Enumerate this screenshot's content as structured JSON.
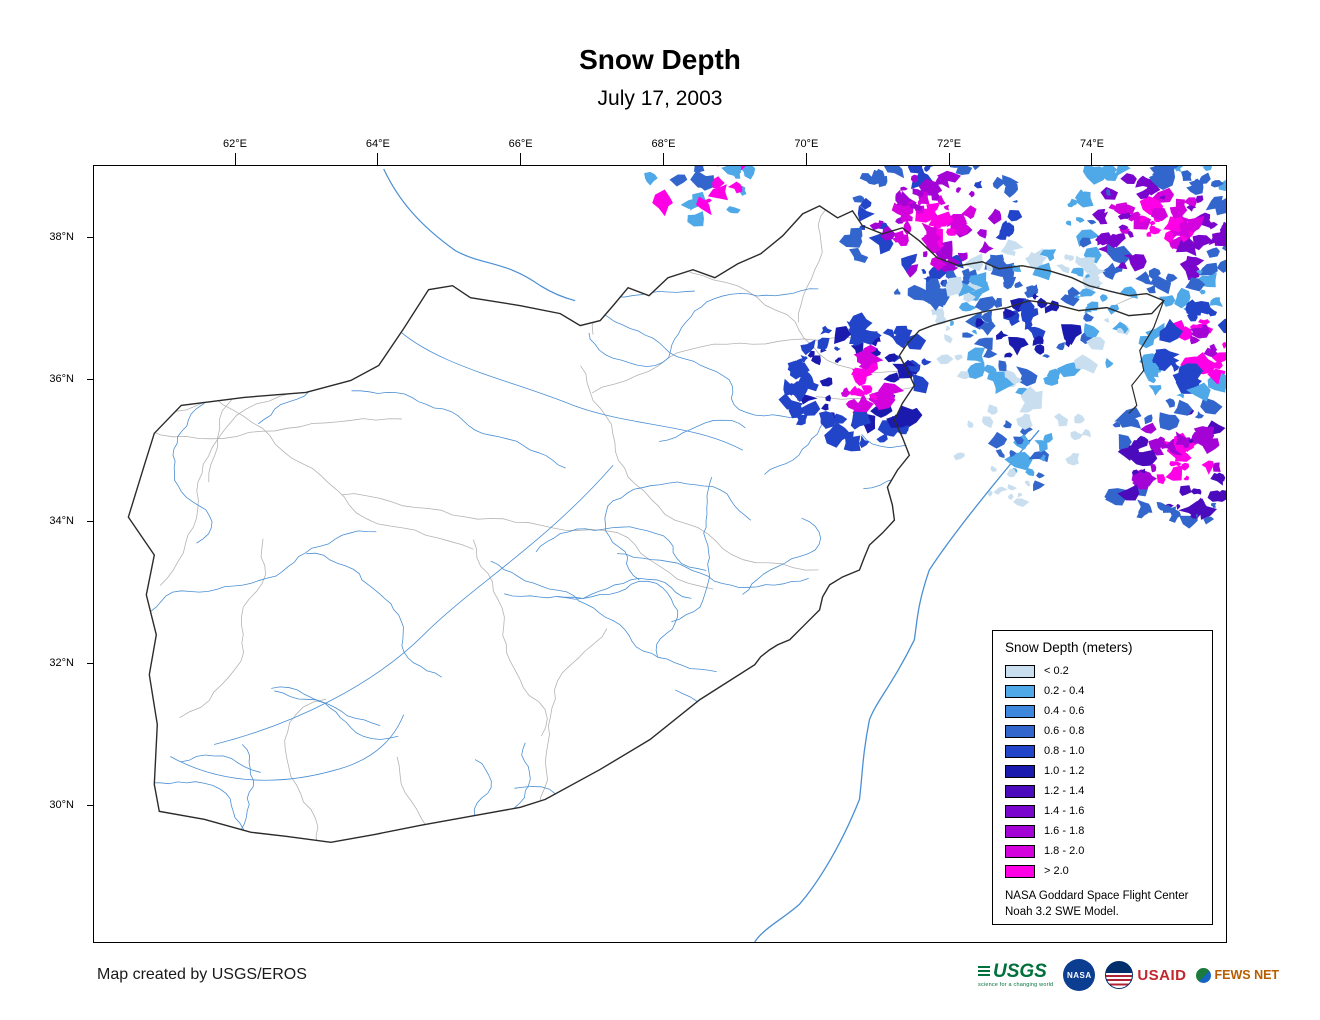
{
  "title": "Snow Depth",
  "date": "July 17, 2003",
  "axes": {
    "top_ticks": [
      "62°E",
      "64°E",
      "66°E",
      "68°E",
      "70°E",
      "72°E",
      "74°E"
    ],
    "left_ticks": [
      "38°N",
      "36°N",
      "34°N",
      "32°N",
      "30°N"
    ]
  },
  "legend": {
    "title": "Snow Depth (meters)",
    "items": [
      {
        "label": "< 0.2",
        "color": "#c9dff0"
      },
      {
        "label": "0.2 - 0.4",
        "color": "#4fa8e8"
      },
      {
        "label": "0.4 - 0.6",
        "color": "#3d87dd"
      },
      {
        "label": "0.6 - 0.8",
        "color": "#3366cc"
      },
      {
        "label": "0.8 - 1.0",
        "color": "#2244c8"
      },
      {
        "label": "1.0 - 1.2",
        "color": "#1a1aae"
      },
      {
        "label": "1.2 - 1.4",
        "color": "#4b0bbd"
      },
      {
        "label": "1.4 - 1.6",
        "color": "#7a05cc"
      },
      {
        "label": "1.6 - 1.8",
        "color": "#a403d6"
      },
      {
        "label": "1.8 - 2.0",
        "color": "#d402dd"
      },
      {
        "label": "> 2.0",
        "color": "#ff00e6"
      }
    ],
    "attribution": [
      "NASA Goddard Space Flight Center",
      "Noah 3.2 SWE Model."
    ]
  },
  "footer": {
    "credit": "Map created by USGS/EROS"
  },
  "logos": [
    {
      "name": "usgs",
      "text": "USGS",
      "tagline": "science for a changing world"
    },
    {
      "name": "nasa",
      "text": "NASA"
    },
    {
      "name": "usaid",
      "text": "USAID"
    },
    {
      "name": "fewsnet",
      "text": "FEWS NET"
    }
  ],
  "map_colors": {
    "river": "#4a8fd3",
    "country_border": "#2b2b2b",
    "watershed": "#b3b3b3"
  }
}
